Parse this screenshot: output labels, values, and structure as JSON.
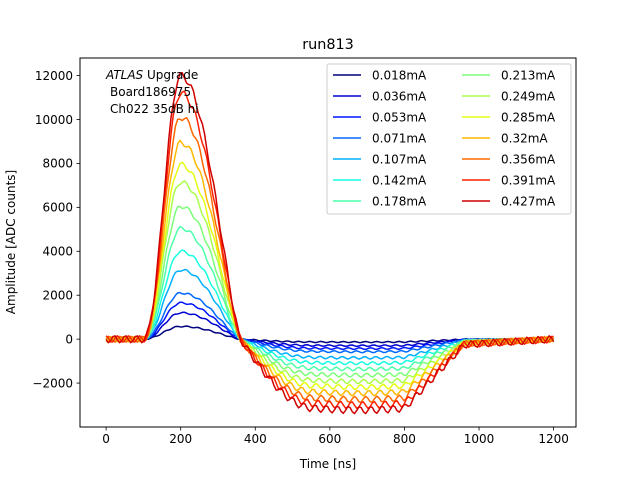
{
  "chart_data": {
    "type": "line",
    "title": "run813",
    "xlabel": "Time [ns]",
    "ylabel": "Amplitude [ADC counts]",
    "xlim": [
      -70,
      1260
    ],
    "ylim": [
      -4000,
      12800
    ],
    "xticks": [
      0,
      200,
      400,
      600,
      800,
      1000,
      1200
    ],
    "yticks": [
      -2000,
      0,
      2000,
      4000,
      6000,
      8000,
      10000,
      12000
    ],
    "xtick_labels": [
      "0",
      "200",
      "400",
      "600",
      "800",
      "1000",
      "1200"
    ],
    "ytick_labels": [
      "−2000",
      "0",
      "2000",
      "4000",
      "6000",
      "8000",
      "10000",
      "12000"
    ],
    "grid": false,
    "legend_position": "upper-right",
    "legend_columns": 2,
    "annotation": {
      "italic": "ATLAS",
      "rest": " Upgrade",
      "line2": "Board186975",
      "line3": "Ch022 35dB hi"
    },
    "pulse_shape": {
      "note_source": "curves read off figure; values per series given by peak and undershoot",
      "x_start": 0,
      "x_end": 1200
    },
    "series": [
      {
        "name": "0.018mA",
        "color": "#00007f",
        "peak": 580,
        "undershoot": -130
      },
      {
        "name": "0.036mA",
        "color": "#0000d0",
        "peak": 1200,
        "undershoot": -290
      },
      {
        "name": "0.053mA",
        "color": "#0016ff",
        "peak": 1650,
        "undershoot": -420
      },
      {
        "name": "0.071mA",
        "color": "#0068ff",
        "peak": 2100,
        "undershoot": -560
      },
      {
        "name": "0.107mA",
        "color": "#00b0ff",
        "peak": 3150,
        "undershoot": -830
      },
      {
        "name": "0.142mA",
        "color": "#16ffe1",
        "peak": 4000,
        "undershoot": -1070
      },
      {
        "name": "0.178mA",
        "color": "#4dffaa",
        "peak": 5050,
        "undershoot": -1330
      },
      {
        "name": "0.213mA",
        "color": "#7dff7a",
        "peak": 6050,
        "undershoot": -1600
      },
      {
        "name": "0.249mA",
        "color": "#aaff4d",
        "peak": 7150,
        "undershoot": -1880
      },
      {
        "name": "0.285mA",
        "color": "#e4ff13",
        "peak": 7950,
        "undershoot": -2130
      },
      {
        "name": "0.32mA",
        "color": "#ffb900",
        "peak": 8950,
        "undershoot": -2400
      },
      {
        "name": "0.356mA",
        "color": "#ff6800",
        "peak": 10100,
        "undershoot": -2680
      },
      {
        "name": "0.391mA",
        "color": "#ff2000",
        "peak": 11200,
        "undershoot": -2930
      },
      {
        "name": "0.427mA",
        "color": "#d00000",
        "peak": 12000,
        "undershoot": -3150
      }
    ]
  }
}
